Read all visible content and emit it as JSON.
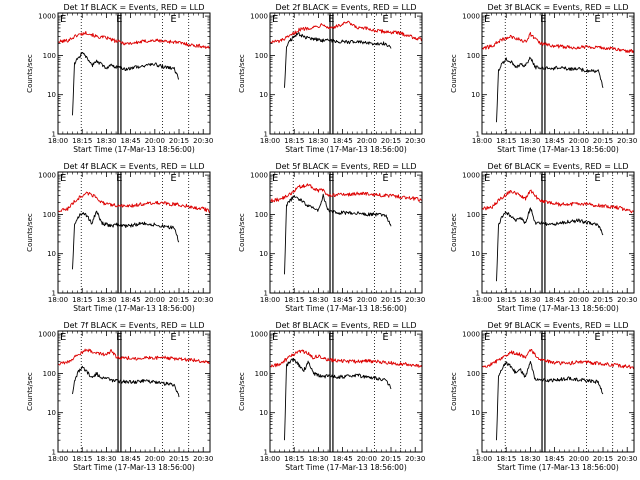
{
  "chart_data": {
    "type": "line",
    "layout": "3x3 grid of time-series panels",
    "axis_units": {
      "x": "minutes after 18:00 UT",
      "y": "Counts/sec (log scale)"
    },
    "shared": {
      "ylabel": "Counts/sec",
      "xlabel": "Start Time (17-Mar-13 18:56:00)",
      "xlim": [
        0,
        157
      ],
      "ylim": [
        1,
        1200
      ],
      "y_tick_labels": [
        "1",
        "10",
        "100",
        "1000"
      ],
      "y_tick_values": [
        1,
        10,
        100,
        1000
      ],
      "x_tick_labels": [
        "18:00",
        "18:15",
        "18:30",
        "18:45",
        "20:00",
        "20:15",
        "20:30"
      ],
      "x_tick_values": [
        0,
        25,
        50,
        75,
        100,
        125,
        150
      ],
      "marker_text": "E",
      "event_marker_positions": [
        1,
        59,
        115
      ],
      "vertical_dotted_lines": [
        24,
        108,
        135
      ],
      "vertical_solid_lines": [
        62,
        65
      ],
      "series_colors": {
        "events": "#000000",
        "lld": "#dd0000"
      },
      "series_names": [
        "Events (black)",
        "LLD (red)"
      ]
    },
    "panels": [
      {
        "title": "Det 1f BLACK = Events, RED = LLD",
        "lld": {
          "x": [
            0,
            10,
            20,
            30,
            40,
            45,
            50,
            60,
            70,
            80,
            90,
            100,
            110,
            120,
            130,
            140,
            150,
            157
          ],
          "y": [
            220,
            240,
            330,
            380,
            300,
            290,
            280,
            230,
            200,
            210,
            230,
            240,
            230,
            220,
            200,
            180,
            170,
            150
          ]
        },
        "events": {
          "x": [
            15,
            17,
            20,
            25,
            30,
            35,
            40,
            45,
            50,
            55,
            60,
            70,
            80,
            90,
            100,
            110,
            120,
            125
          ],
          "y": [
            3,
            60,
            85,
            110,
            90,
            55,
            70,
            60,
            45,
            55,
            50,
            45,
            50,
            55,
            60,
            50,
            45,
            25
          ]
        }
      },
      {
        "title": "Det 2f BLACK = Events, RED = LLD",
        "lld": {
          "x": [
            0,
            10,
            20,
            30,
            40,
            50,
            55,
            60,
            70,
            80,
            90,
            100,
            110,
            120,
            130,
            140,
            150,
            157
          ],
          "y": [
            220,
            230,
            300,
            450,
            500,
            550,
            650,
            500,
            550,
            700,
            500,
            480,
            420,
            400,
            380,
            340,
            280,
            250
          ]
        },
        "events": {
          "x": [
            15,
            17,
            20,
            25,
            30,
            35,
            40,
            45,
            50,
            55,
            60,
            70,
            80,
            90,
            100,
            110,
            120,
            125
          ],
          "y": [
            15,
            150,
            220,
            320,
            350,
            300,
            270,
            260,
            250,
            240,
            240,
            230,
            220,
            220,
            210,
            200,
            200,
            150
          ]
        }
      },
      {
        "title": "Det 3f BLACK = Events, RED = LLD",
        "lld": {
          "x": [
            0,
            10,
            20,
            30,
            40,
            45,
            50,
            60,
            70,
            80,
            90,
            100,
            110,
            120,
            130,
            135,
            140,
            150,
            157
          ],
          "y": [
            150,
            170,
            250,
            300,
            250,
            220,
            350,
            200,
            180,
            170,
            160,
            160,
            170,
            160,
            150,
            150,
            140,
            130,
            130
          ]
        },
        "events": {
          "x": [
            15,
            17,
            20,
            25,
            30,
            35,
            40,
            45,
            50,
            55,
            60,
            70,
            80,
            90,
            100,
            110,
            120,
            125
          ],
          "y": [
            2,
            40,
            60,
            80,
            70,
            50,
            60,
            55,
            90,
            50,
            50,
            45,
            50,
            45,
            45,
            40,
            40,
            15
          ]
        }
      },
      {
        "title": "Det 4f BLACK = Events, RED = LLD",
        "lld": {
          "x": [
            0,
            10,
            20,
            30,
            40,
            45,
            50,
            60,
            70,
            80,
            90,
            100,
            110,
            120,
            130,
            140,
            150,
            157
          ],
          "y": [
            120,
            140,
            250,
            350,
            280,
            200,
            180,
            170,
            160,
            170,
            190,
            200,
            190,
            180,
            170,
            150,
            140,
            120
          ]
        },
        "events": {
          "x": [
            15,
            17,
            20,
            25,
            30,
            35,
            40,
            45,
            50,
            55,
            60,
            70,
            80,
            90,
            100,
            110,
            120,
            125
          ],
          "y": [
            4,
            50,
            80,
            110,
            90,
            60,
            120,
            60,
            55,
            50,
            55,
            50,
            55,
            60,
            55,
            50,
            45,
            20
          ]
        }
      },
      {
        "title": "Det 5f BLACK = Events, RED = LLD",
        "lld": {
          "x": [
            0,
            10,
            20,
            30,
            40,
            50,
            55,
            60,
            70,
            80,
            90,
            100,
            110,
            120,
            130,
            140,
            150,
            157
          ],
          "y": [
            220,
            240,
            320,
            500,
            560,
            400,
            420,
            300,
            320,
            320,
            340,
            330,
            320,
            300,
            290,
            270,
            250,
            230
          ]
        },
        "events": {
          "x": [
            15,
            17,
            20,
            25,
            30,
            35,
            40,
            45,
            50,
            55,
            60,
            70,
            80,
            90,
            100,
            110,
            120,
            125
          ],
          "y": [
            3,
            160,
            220,
            280,
            250,
            200,
            160,
            150,
            130,
            300,
            130,
            110,
            110,
            110,
            100,
            100,
            90,
            50
          ]
        }
      },
      {
        "title": "Det 6f BLACK = Events, RED = LLD",
        "lld": {
          "x": [
            0,
            10,
            20,
            30,
            40,
            45,
            50,
            60,
            70,
            80,
            90,
            100,
            110,
            120,
            130,
            140,
            150,
            157
          ],
          "y": [
            140,
            150,
            260,
            400,
            300,
            250,
            400,
            220,
            200,
            180,
            180,
            190,
            180,
            170,
            160,
            150,
            130,
            110
          ]
        },
        "events": {
          "x": [
            15,
            17,
            20,
            25,
            30,
            35,
            40,
            45,
            50,
            55,
            60,
            70,
            80,
            90,
            100,
            110,
            120,
            125
          ],
          "y": [
            2,
            50,
            80,
            110,
            90,
            70,
            80,
            60,
            150,
            60,
            60,
            55,
            60,
            65,
            70,
            60,
            55,
            30
          ]
        }
      },
      {
        "title": "Det 7f BLACK = Events, RED = LLD",
        "lld": {
          "x": [
            0,
            10,
            20,
            30,
            40,
            50,
            55,
            60,
            70,
            80,
            90,
            100,
            110,
            120,
            130,
            140,
            150,
            157
          ],
          "y": [
            170,
            190,
            300,
            400,
            330,
            300,
            380,
            260,
            250,
            240,
            250,
            250,
            250,
            240,
            230,
            220,
            200,
            190
          ]
        },
        "events": {
          "x": [
            15,
            17,
            20,
            25,
            30,
            35,
            40,
            45,
            50,
            55,
            60,
            70,
            80,
            90,
            100,
            110,
            120,
            125
          ],
          "y": [
            30,
            60,
            100,
            140,
            110,
            80,
            100,
            70,
            80,
            65,
            65,
            60,
            60,
            65,
            60,
            55,
            50,
            25
          ]
        }
      },
      {
        "title": "Det 8f BLACK = Events, RED = LLD",
        "lld": {
          "x": [
            0,
            10,
            20,
            30,
            40,
            45,
            50,
            60,
            70,
            80,
            90,
            100,
            110,
            120,
            130,
            140,
            150,
            157
          ],
          "y": [
            150,
            170,
            260,
            380,
            320,
            250,
            280,
            220,
            210,
            200,
            200,
            210,
            200,
            190,
            180,
            170,
            160,
            150
          ]
        },
        "events": {
          "x": [
            15,
            17,
            20,
            25,
            30,
            35,
            40,
            45,
            50,
            55,
            60,
            70,
            80,
            90,
            100,
            110,
            120,
            125
          ],
          "y": [
            2,
            150,
            200,
            220,
            160,
            120,
            200,
            100,
            90,
            80,
            90,
            80,
            85,
            90,
            80,
            75,
            70,
            40
          ]
        }
      },
      {
        "title": "Det 9f BLACK = Events, RED = LLD",
        "lld": {
          "x": [
            0,
            10,
            20,
            30,
            40,
            45,
            50,
            60,
            70,
            80,
            90,
            100,
            110,
            120,
            130,
            140,
            150,
            157
          ],
          "y": [
            150,
            170,
            250,
            350,
            300,
            250,
            400,
            220,
            200,
            180,
            180,
            200,
            190,
            180,
            170,
            160,
            150,
            140
          ]
        },
        "events": {
          "x": [
            15,
            17,
            20,
            25,
            30,
            35,
            40,
            45,
            50,
            55,
            60,
            70,
            80,
            90,
            100,
            110,
            120,
            125
          ],
          "y": [
            2,
            80,
            130,
            180,
            150,
            100,
            120,
            80,
            200,
            70,
            70,
            65,
            70,
            75,
            70,
            65,
            60,
            30
          ]
        }
      }
    ]
  }
}
